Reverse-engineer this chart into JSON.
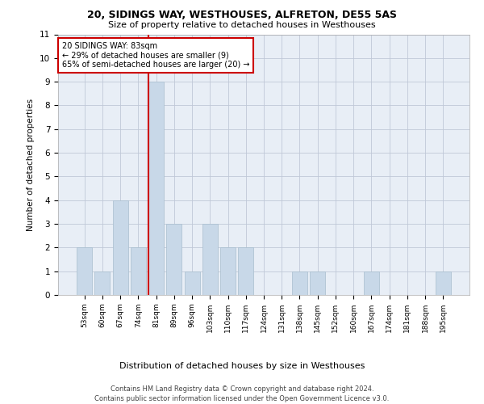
{
  "title_line1": "20, SIDINGS WAY, WESTHOUSES, ALFRETON, DE55 5AS",
  "title_line2": "Size of property relative to detached houses in Westhouses",
  "xlabel": "Distribution of detached houses by size in Westhouses",
  "ylabel": "Number of detached properties",
  "categories": [
    "53sqm",
    "60sqm",
    "67sqm",
    "74sqm",
    "81sqm",
    "89sqm",
    "96sqm",
    "103sqm",
    "110sqm",
    "117sqm",
    "124sqm",
    "131sqm",
    "138sqm",
    "145sqm",
    "152sqm",
    "160sqm",
    "167sqm",
    "174sqm",
    "181sqm",
    "188sqm",
    "195sqm"
  ],
  "values": [
    2,
    1,
    4,
    2,
    9,
    3,
    1,
    3,
    2,
    2,
    0,
    0,
    1,
    1,
    0,
    0,
    1,
    0,
    0,
    0,
    1
  ],
  "highlight_index": 4,
  "bar_color": "#c8d8e8",
  "bar_edge_color": "#a8bece",
  "highlight_line_color": "#cc0000",
  "annotation_text": "20 SIDINGS WAY: 83sqm\n← 29% of detached houses are smaller (9)\n65% of semi-detached houses are larger (20) →",
  "annotation_box_color": "#ffffff",
  "annotation_box_edge_color": "#cc0000",
  "ylim": [
    0,
    11
  ],
  "yticks": [
    0,
    1,
    2,
    3,
    4,
    5,
    6,
    7,
    8,
    9,
    10,
    11
  ],
  "background_color": "#e8eef6",
  "footer_line1": "Contains HM Land Registry data © Crown copyright and database right 2024.",
  "footer_line2": "Contains public sector information licensed under the Open Government Licence v3.0."
}
